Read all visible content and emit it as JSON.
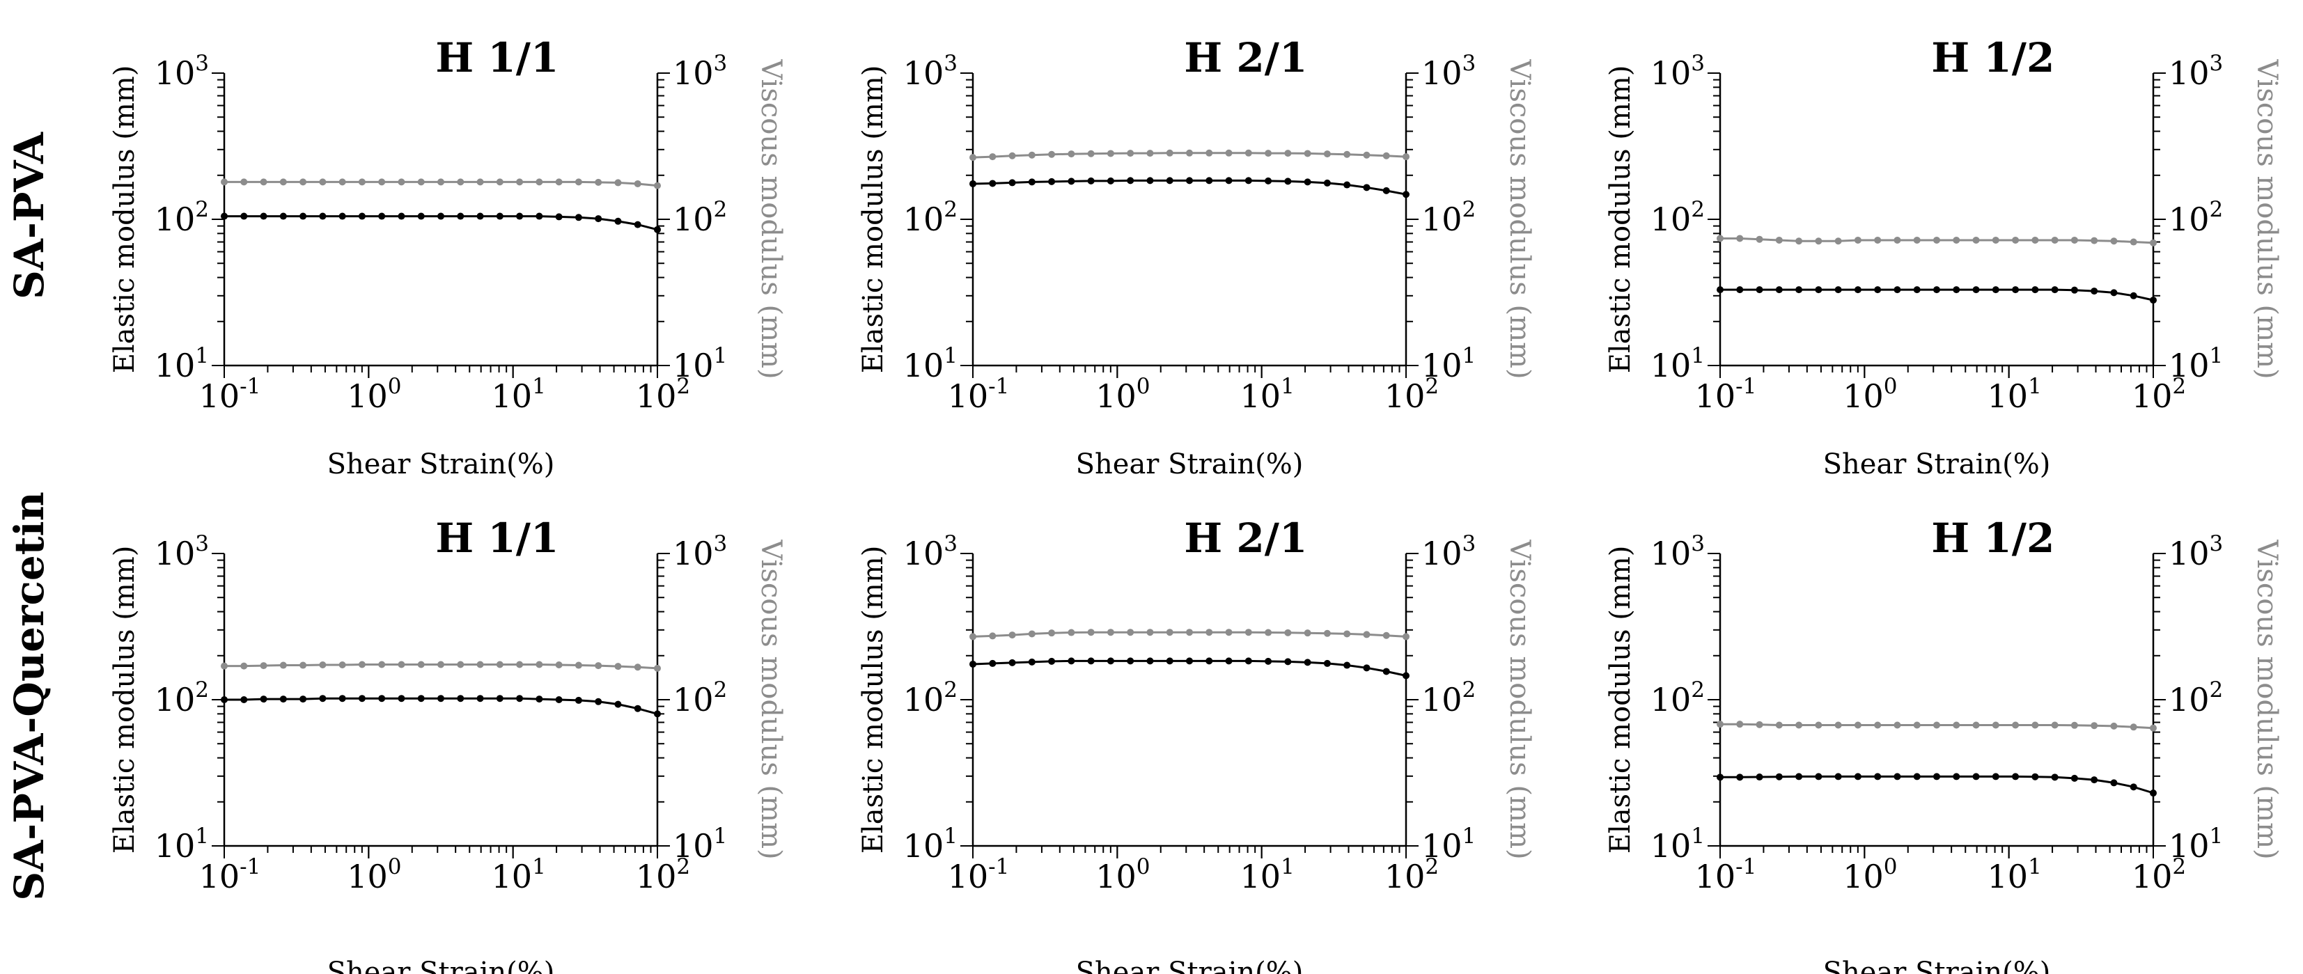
{
  "figure": {
    "row_labels": [
      "SA-PVA",
      "SA-PVA-Quercetin"
    ],
    "colors": {
      "elastic": "#000000",
      "viscous": "#8c8c8c",
      "axis": "#000000"
    }
  },
  "chart_data": [
    {
      "type": "line",
      "row": "SA-PVA",
      "title": "H 1/1",
      "xlabel": "Shear Strain(%)",
      "ylabel": "Elastic modulus (mm)",
      "y2label": "Viscous modulus (mm)",
      "xscale": "log",
      "yscale": "log",
      "xlim": [
        0.1,
        100
      ],
      "ylim": [
        10,
        1000
      ],
      "grid": false,
      "xticks": [
        {
          "base": "10",
          "exp": "-1",
          "value": 0.1
        },
        {
          "base": "10",
          "exp": "0",
          "value": 1
        },
        {
          "base": "10",
          "exp": "1",
          "value": 10
        },
        {
          "base": "10",
          "exp": "2",
          "value": 100
        }
      ],
      "yticks": [
        {
          "base": "10",
          "exp": "1",
          "value": 10
        },
        {
          "base": "10",
          "exp": "2",
          "value": 100
        },
        {
          "base": "10",
          "exp": "3",
          "value": 1000
        }
      ],
      "series": [
        {
          "name": "Elastic modulus",
          "axis": "left",
          "color": "#000000",
          "values": [
            105,
            105,
            105,
            105,
            105,
            105,
            105,
            105,
            105,
            105,
            105,
            105,
            105,
            105,
            105,
            105,
            105,
            104,
            103,
            101,
            97,
            92,
            85
          ]
        },
        {
          "name": "Viscous modulus",
          "axis": "right",
          "color": "#8c8c8c",
          "values": [
            180,
            180,
            180,
            180,
            180,
            180,
            180,
            180,
            180,
            180,
            180,
            180,
            180,
            180,
            180,
            180,
            180,
            180,
            180,
            179,
            178,
            175,
            170
          ]
        }
      ]
    },
    {
      "type": "line",
      "row": "SA-PVA",
      "title": "H 2/1",
      "xlabel": "Shear Strain(%)",
      "ylabel": "Elastic modulus (mm)",
      "y2label": "Viscous modulus (mm)",
      "xscale": "log",
      "yscale": "log",
      "xlim": [
        0.1,
        100
      ],
      "ylim": [
        10,
        1000
      ],
      "grid": false,
      "xticks": [
        {
          "base": "10",
          "exp": "-1",
          "value": 0.1
        },
        {
          "base": "10",
          "exp": "0",
          "value": 1
        },
        {
          "base": "10",
          "exp": "1",
          "value": 10
        },
        {
          "base": "10",
          "exp": "2",
          "value": 100
        }
      ],
      "yticks": [
        {
          "base": "10",
          "exp": "1",
          "value": 10
        },
        {
          "base": "10",
          "exp": "2",
          "value": 100
        },
        {
          "base": "10",
          "exp": "3",
          "value": 1000
        }
      ],
      "series": [
        {
          "name": "Elastic modulus",
          "axis": "left",
          "color": "#000000",
          "values": [
            175,
            176,
            178,
            180,
            181,
            182,
            183,
            183,
            184,
            184,
            184,
            184,
            184,
            184,
            184,
            183,
            182,
            180,
            177,
            172,
            165,
            157,
            148
          ]
        },
        {
          "name": "Viscous modulus",
          "axis": "right",
          "color": "#8c8c8c",
          "values": [
            265,
            268,
            272,
            275,
            278,
            280,
            281,
            282,
            283,
            283,
            284,
            284,
            284,
            284,
            284,
            283,
            283,
            282,
            280,
            278,
            275,
            272,
            268
          ]
        }
      ]
    },
    {
      "type": "line",
      "row": "SA-PVA",
      "title": "H 1/2",
      "xlabel": "Shear Strain(%)",
      "ylabel": "Elastic modulus (mm)",
      "y2label": "Viscous modulus (mm)",
      "xscale": "log",
      "yscale": "log",
      "xlim": [
        0.1,
        100
      ],
      "ylim": [
        10,
        1000
      ],
      "grid": false,
      "xticks": [
        {
          "base": "10",
          "exp": "-1",
          "value": 0.1
        },
        {
          "base": "10",
          "exp": "0",
          "value": 1
        },
        {
          "base": "10",
          "exp": "1",
          "value": 10
        },
        {
          "base": "10",
          "exp": "2",
          "value": 100
        }
      ],
      "yticks": [
        {
          "base": "10",
          "exp": "1",
          "value": 10
        },
        {
          "base": "10",
          "exp": "2",
          "value": 100
        },
        {
          "base": "10",
          "exp": "3",
          "value": 1000
        }
      ],
      "series": [
        {
          "name": "Elastic modulus",
          "axis": "left",
          "color": "#000000",
          "values": [
            33,
            33,
            33,
            33,
            33,
            33,
            33,
            33,
            33,
            33,
            33,
            33,
            33,
            33,
            33,
            33,
            33,
            33,
            32.8,
            32.3,
            31.5,
            30,
            28
          ]
        },
        {
          "name": "Viscous modulus",
          "axis": "right",
          "color": "#8c8c8c",
          "values": [
            74,
            74,
            73,
            72,
            71,
            71,
            71,
            72,
            72,
            72,
            72,
            72,
            72,
            72,
            72,
            72,
            72,
            72,
            72,
            71.5,
            71,
            70,
            69
          ]
        }
      ]
    },
    {
      "type": "line",
      "row": "SA-PVA-Quercetin",
      "title": "H 1/1",
      "xlabel": "Shear Strain(%)",
      "ylabel": "Elastic modulus (mm)",
      "y2label": "Viscous modulus (mm)",
      "xscale": "log",
      "yscale": "log",
      "xlim": [
        0.1,
        100
      ],
      "ylim": [
        10,
        1000
      ],
      "grid": false,
      "xticks": [
        {
          "base": "10",
          "exp": "-1",
          "value": 0.1
        },
        {
          "base": "10",
          "exp": "0",
          "value": 1
        },
        {
          "base": "10",
          "exp": "1",
          "value": 10
        },
        {
          "base": "10",
          "exp": "2",
          "value": 100
        }
      ],
      "yticks": [
        {
          "base": "10",
          "exp": "1",
          "value": 10
        },
        {
          "base": "10",
          "exp": "2",
          "value": 100
        },
        {
          "base": "10",
          "exp": "3",
          "value": 1000
        }
      ],
      "series": [
        {
          "name": "Elastic modulus",
          "axis": "left",
          "color": "#000000",
          "values": [
            100,
            100,
            101,
            101,
            101,
            102,
            102,
            102,
            102,
            102,
            102,
            102,
            102,
            102,
            102,
            102,
            101,
            100,
            99,
            97,
            93,
            87,
            80
          ]
        },
        {
          "name": "Viscous modulus",
          "axis": "right",
          "color": "#8c8c8c",
          "values": [
            170,
            170,
            171,
            172,
            172,
            173,
            173,
            174,
            174,
            174,
            174,
            174,
            174,
            174,
            174,
            174,
            174,
            173,
            172,
            171,
            169,
            167,
            164
          ]
        }
      ]
    },
    {
      "type": "line",
      "row": "SA-PVA-Quercetin",
      "title": "H 2/1",
      "xlabel": "Shear Strain(%)",
      "ylabel": "Elastic modulus (mm)",
      "y2label": "Viscous modulus (mm)",
      "xscale": "log",
      "yscale": "log",
      "xlim": [
        0.1,
        100
      ],
      "ylim": [
        10,
        1000
      ],
      "grid": false,
      "xticks": [
        {
          "base": "10",
          "exp": "-1",
          "value": 0.1
        },
        {
          "base": "10",
          "exp": "0",
          "value": 1
        },
        {
          "base": "10",
          "exp": "1",
          "value": 10
        },
        {
          "base": "10",
          "exp": "2",
          "value": 100
        }
      ],
      "yticks": [
        {
          "base": "10",
          "exp": "1",
          "value": 10
        },
        {
          "base": "10",
          "exp": "2",
          "value": 100
        },
        {
          "base": "10",
          "exp": "3",
          "value": 1000
        }
      ],
      "series": [
        {
          "name": "Elastic modulus",
          "axis": "left",
          "color": "#000000",
          "values": [
            175,
            177,
            179,
            181,
            183,
            184,
            184,
            184,
            184,
            184,
            184,
            184,
            184,
            184,
            184,
            183,
            182,
            180,
            177,
            172,
            165,
            156,
            146
          ]
        },
        {
          "name": "Viscous modulus",
          "axis": "right",
          "color": "#8c8c8c",
          "values": [
            270,
            273,
            277,
            282,
            286,
            288,
            289,
            289,
            289,
            289,
            289,
            289,
            289,
            289,
            289,
            288,
            287,
            286,
            284,
            282,
            279,
            275,
            270
          ]
        }
      ]
    },
    {
      "type": "line",
      "row": "SA-PVA-Quercetin",
      "title": "H 1/2",
      "xlabel": "Shear Strain(%)",
      "ylabel": "Elastic modulus (mm)",
      "y2label": "Viscous modulus (mm)",
      "xscale": "log",
      "yscale": "log",
      "xlim": [
        0.1,
        100
      ],
      "ylim": [
        10,
        1000
      ],
      "grid": false,
      "xticks": [
        {
          "base": "10",
          "exp": "-1",
          "value": 0.1
        },
        {
          "base": "10",
          "exp": "0",
          "value": 1
        },
        {
          "base": "10",
          "exp": "1",
          "value": 10
        },
        {
          "base": "10",
          "exp": "2",
          "value": 100
        }
      ],
      "yticks": [
        {
          "base": "10",
          "exp": "1",
          "value": 10
        },
        {
          "base": "10",
          "exp": "2",
          "value": 100
        },
        {
          "base": "10",
          "exp": "3",
          "value": 1000
        }
      ],
      "series": [
        {
          "name": "Elastic modulus",
          "axis": "left",
          "color": "#000000",
          "values": [
            29.5,
            29.5,
            29.6,
            29.7,
            29.8,
            29.8,
            29.8,
            29.8,
            29.8,
            29.8,
            29.8,
            29.8,
            29.8,
            29.8,
            29.8,
            29.8,
            29.7,
            29.5,
            29,
            28.3,
            27,
            25.3,
            23
          ]
        },
        {
          "name": "Viscous modulus",
          "axis": "right",
          "color": "#8c8c8c",
          "values": [
            68,
            68,
            67.5,
            67,
            67,
            67,
            67,
            67,
            67,
            67,
            67,
            67,
            67,
            67,
            67,
            67,
            67,
            67,
            66.8,
            66.5,
            66,
            65,
            64
          ]
        }
      ]
    }
  ]
}
